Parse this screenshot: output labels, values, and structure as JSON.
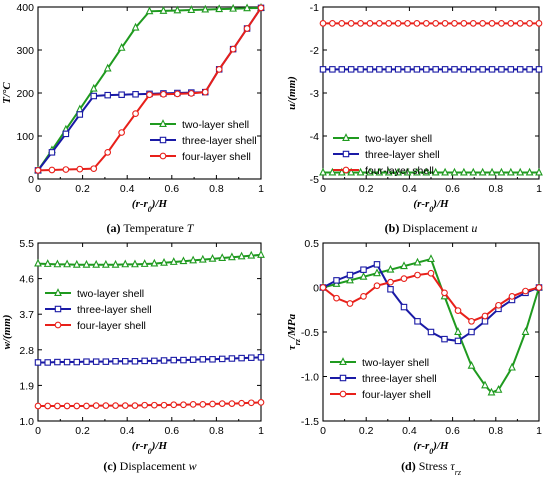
{
  "chart_data": [
    {
      "id": "a",
      "type": "line",
      "ylabel": "T/°C",
      "xlabel": "(r-r0)/H",
      "xlim": [
        0,
        1
      ],
      "ylim": [
        0,
        400
      ],
      "xticks": [
        "0",
        "0.2",
        "0.4",
        "0.6",
        "0.8",
        "1"
      ],
      "yticks": [
        "0",
        "100",
        "200",
        "300",
        "400"
      ],
      "legend_position": "lower-right",
      "caption_label": "(a)",
      "caption_text": "Temperature",
      "caption_symbol": "T",
      "series": [
        {
          "name": "two-layer shell",
          "color": "#1f9a1f",
          "marker": "triangle",
          "x": [
            0,
            0.0625,
            0.125,
            0.1875,
            0.25,
            0.3125,
            0.375,
            0.4375,
            0.5,
            0.5625,
            0.625,
            0.6875,
            0.75,
            0.8125,
            0.875,
            0.9375,
            1
          ],
          "y": [
            20,
            67,
            115,
            162,
            210,
            257,
            305,
            352,
            390,
            391,
            392,
            393,
            394,
            395,
            396,
            397,
            398
          ]
        },
        {
          "name": "three-layer shell",
          "color": "#1a1aa6",
          "marker": "square",
          "x": [
            0,
            0.0625,
            0.125,
            0.1875,
            0.25,
            0.3125,
            0.375,
            0.4375,
            0.5,
            0.5625,
            0.625,
            0.6875,
            0.75,
            0.8125,
            0.875,
            0.9375,
            1
          ],
          "y": [
            20,
            62,
            105,
            150,
            193,
            195,
            196,
            197,
            198,
            199,
            200,
            201,
            202,
            255,
            302,
            350,
            398
          ]
        },
        {
          "name": "four-layer shell",
          "color": "#e8201a",
          "marker": "circle",
          "x": [
            0,
            0.0625,
            0.125,
            0.1875,
            0.25,
            0.3125,
            0.375,
            0.4375,
            0.5,
            0.5625,
            0.625,
            0.6875,
            0.75,
            0.8125,
            0.875,
            0.9375,
            1
          ],
          "y": [
            20,
            21,
            22,
            23,
            24,
            62,
            108,
            152,
            196,
            197,
            198,
            199,
            202,
            255,
            302,
            350,
            398
          ]
        }
      ]
    },
    {
      "id": "b",
      "type": "line",
      "ylabel": "u/(mm)",
      "xlabel": "(r-r0)/H",
      "xlim": [
        0,
        1
      ],
      "ylim": [
        -5,
        -1
      ],
      "xticks": [
        "0",
        "0.2",
        "0.4",
        "0.6",
        "0.8",
        "1"
      ],
      "yticks": [
        "-5",
        "-4",
        "-3",
        "-2",
        "-1"
      ],
      "legend_position": "lower-left",
      "caption_label": "(b)",
      "caption_text": "Displacement",
      "caption_symbol": "u",
      "series": [
        {
          "name": "two-layer shell",
          "color": "#1f9a1f",
          "marker": "triangle",
          "x": [
            0,
            0.0435,
            0.087,
            0.1304,
            0.1739,
            0.2174,
            0.2609,
            0.3043,
            0.3478,
            0.3913,
            0.4348,
            0.4783,
            0.5217,
            0.5652,
            0.6087,
            0.6522,
            0.6957,
            0.7391,
            0.7826,
            0.8261,
            0.8696,
            0.913,
            0.9565,
            1
          ],
          "y": [
            -4.85,
            -4.85,
            -4.85,
            -4.85,
            -4.85,
            -4.85,
            -4.85,
            -4.85,
            -4.85,
            -4.85,
            -4.85,
            -4.85,
            -4.85,
            -4.85,
            -4.85,
            -4.85,
            -4.85,
            -4.85,
            -4.85,
            -4.85,
            -4.85,
            -4.85,
            -4.85,
            -4.85
          ]
        },
        {
          "name": "three-layer shell",
          "color": "#1a1aa6",
          "marker": "square",
          "x": [
            0,
            0.0435,
            0.087,
            0.1304,
            0.1739,
            0.2174,
            0.2609,
            0.3043,
            0.3478,
            0.3913,
            0.4348,
            0.4783,
            0.5217,
            0.5652,
            0.6087,
            0.6522,
            0.6957,
            0.7391,
            0.7826,
            0.8261,
            0.8696,
            0.913,
            0.9565,
            1
          ],
          "y": [
            -2.45,
            -2.45,
            -2.45,
            -2.45,
            -2.45,
            -2.45,
            -2.45,
            -2.45,
            -2.45,
            -2.45,
            -2.45,
            -2.45,
            -2.45,
            -2.45,
            -2.45,
            -2.45,
            -2.45,
            -2.45,
            -2.45,
            -2.45,
            -2.45,
            -2.45,
            -2.45,
            -2.45
          ]
        },
        {
          "name": "four-layer shell",
          "color": "#e8201a",
          "marker": "circle",
          "x": [
            0,
            0.0435,
            0.087,
            0.1304,
            0.1739,
            0.2174,
            0.2609,
            0.3043,
            0.3478,
            0.3913,
            0.4348,
            0.4783,
            0.5217,
            0.5652,
            0.6087,
            0.6522,
            0.6957,
            0.7391,
            0.7826,
            0.8261,
            0.8696,
            0.913,
            0.9565,
            1
          ],
          "y": [
            -1.38,
            -1.38,
            -1.38,
            -1.38,
            -1.38,
            -1.38,
            -1.38,
            -1.38,
            -1.38,
            -1.38,
            -1.38,
            -1.38,
            -1.38,
            -1.38,
            -1.38,
            -1.38,
            -1.38,
            -1.38,
            -1.38,
            -1.38,
            -1.38,
            -1.38,
            -1.38,
            -1.38
          ]
        }
      ]
    },
    {
      "id": "c",
      "type": "line",
      "ylabel": "w/(mm)",
      "xlabel": "(r-r0)/H",
      "xlim": [
        0,
        1
      ],
      "ylim": [
        1.0,
        5.5
      ],
      "xticks": [
        "0",
        "0.2",
        "0.4",
        "0.6",
        "0.8",
        "1"
      ],
      "yticks": [
        "1.0",
        "1.9",
        "2.8",
        "3.7",
        "4.6",
        "5.5"
      ],
      "ytick_values": [
        1.0,
        1.9,
        2.8,
        3.7,
        4.6,
        5.5
      ],
      "legend_position": "center-left",
      "caption_label": "(c)",
      "caption_text": "Displacement",
      "caption_symbol": "w",
      "series": [
        {
          "name": "two-layer shell",
          "color": "#1f9a1f",
          "marker": "triangle",
          "x": [
            0,
            0.0435,
            0.087,
            0.1304,
            0.1739,
            0.2174,
            0.2609,
            0.3043,
            0.3478,
            0.3913,
            0.4348,
            0.4783,
            0.5217,
            0.5652,
            0.6087,
            0.6522,
            0.6957,
            0.7391,
            0.7826,
            0.8261,
            0.8696,
            0.913,
            0.9565,
            1
          ],
          "y": [
            4.98,
            4.97,
            4.96,
            4.96,
            4.95,
            4.95,
            4.95,
            4.95,
            4.95,
            4.96,
            4.96,
            4.97,
            4.98,
            5.0,
            5.02,
            5.04,
            5.06,
            5.08,
            5.1,
            5.12,
            5.14,
            5.16,
            5.18,
            5.2
          ]
        },
        {
          "name": "three-layer shell",
          "color": "#1a1aa6",
          "marker": "square",
          "x": [
            0,
            0.0435,
            0.087,
            0.1304,
            0.1739,
            0.2174,
            0.2609,
            0.3043,
            0.3478,
            0.3913,
            0.4348,
            0.4783,
            0.5217,
            0.5652,
            0.6087,
            0.6522,
            0.6957,
            0.7391,
            0.7826,
            0.8261,
            0.8696,
            0.913,
            0.9565,
            1
          ],
          "y": [
            2.48,
            2.48,
            2.49,
            2.49,
            2.49,
            2.5,
            2.5,
            2.5,
            2.51,
            2.51,
            2.51,
            2.52,
            2.52,
            2.53,
            2.54,
            2.54,
            2.55,
            2.56,
            2.56,
            2.57,
            2.58,
            2.59,
            2.6,
            2.61
          ]
        },
        {
          "name": "four-layer shell",
          "color": "#e8201a",
          "marker": "circle",
          "x": [
            0,
            0.0435,
            0.087,
            0.1304,
            0.1739,
            0.2174,
            0.2609,
            0.3043,
            0.3478,
            0.3913,
            0.4348,
            0.4783,
            0.5217,
            0.5652,
            0.6087,
            0.6522,
            0.6957,
            0.7391,
            0.7826,
            0.8261,
            0.8696,
            0.913,
            0.9565,
            1
          ],
          "y": [
            1.38,
            1.38,
            1.38,
            1.38,
            1.38,
            1.38,
            1.39,
            1.39,
            1.39,
            1.39,
            1.39,
            1.4,
            1.4,
            1.4,
            1.41,
            1.41,
            1.42,
            1.42,
            1.43,
            1.44,
            1.44,
            1.45,
            1.46,
            1.47
          ]
        }
      ]
    },
    {
      "id": "d",
      "type": "line",
      "ylabel": "τrz/MPa",
      "xlabel": "(r-r0)/H",
      "xlim": [
        0,
        1
      ],
      "ylim": [
        -1.5,
        0.5
      ],
      "xticks": [
        "0",
        "0.2",
        "0.4",
        "0.6",
        "0.8",
        "1"
      ],
      "yticks": [
        "-1.5",
        "-1.0",
        "-0.5",
        "0",
        "0.5"
      ],
      "legend_position": "lower-left",
      "caption_label": "(d)",
      "caption_text": "Stress",
      "caption_symbol": "τrz",
      "series": [
        {
          "name": "two-layer shell",
          "color": "#1f9a1f",
          "marker": "triangle",
          "x": [
            0,
            0.0625,
            0.125,
            0.1875,
            0.25,
            0.3125,
            0.375,
            0.4375,
            0.5,
            0.5625,
            0.625,
            0.6875,
            0.75,
            0.78,
            0.8125,
            0.875,
            0.9375,
            1
          ],
          "y": [
            0,
            0.04,
            0.08,
            0.12,
            0.16,
            0.2,
            0.24,
            0.28,
            0.32,
            -0.1,
            -0.5,
            -0.88,
            -1.1,
            -1.18,
            -1.15,
            -0.9,
            -0.5,
            0
          ]
        },
        {
          "name": "three-layer shell",
          "color": "#1a1aa6",
          "marker": "square",
          "x": [
            0,
            0.0625,
            0.125,
            0.1875,
            0.25,
            0.3125,
            0.375,
            0.4375,
            0.5,
            0.5625,
            0.625,
            0.6875,
            0.75,
            0.8125,
            0.875,
            0.9375,
            1
          ],
          "y": [
            0,
            0.08,
            0.14,
            0.2,
            0.26,
            -0.02,
            -0.22,
            -0.38,
            -0.5,
            -0.58,
            -0.6,
            -0.5,
            -0.38,
            -0.24,
            -0.14,
            -0.06,
            0
          ]
        },
        {
          "name": "four-layer shell",
          "color": "#e8201a",
          "marker": "circle",
          "x": [
            0,
            0.0625,
            0.125,
            0.1875,
            0.25,
            0.3125,
            0.375,
            0.4375,
            0.5,
            0.5625,
            0.625,
            0.6875,
            0.75,
            0.8125,
            0.875,
            0.9375,
            1
          ],
          "y": [
            0,
            -0.12,
            -0.18,
            -0.1,
            0.02,
            0.06,
            0.1,
            0.14,
            0.16,
            -0.06,
            -0.26,
            -0.38,
            -0.32,
            -0.2,
            -0.1,
            -0.04,
            0
          ]
        }
      ]
    }
  ]
}
